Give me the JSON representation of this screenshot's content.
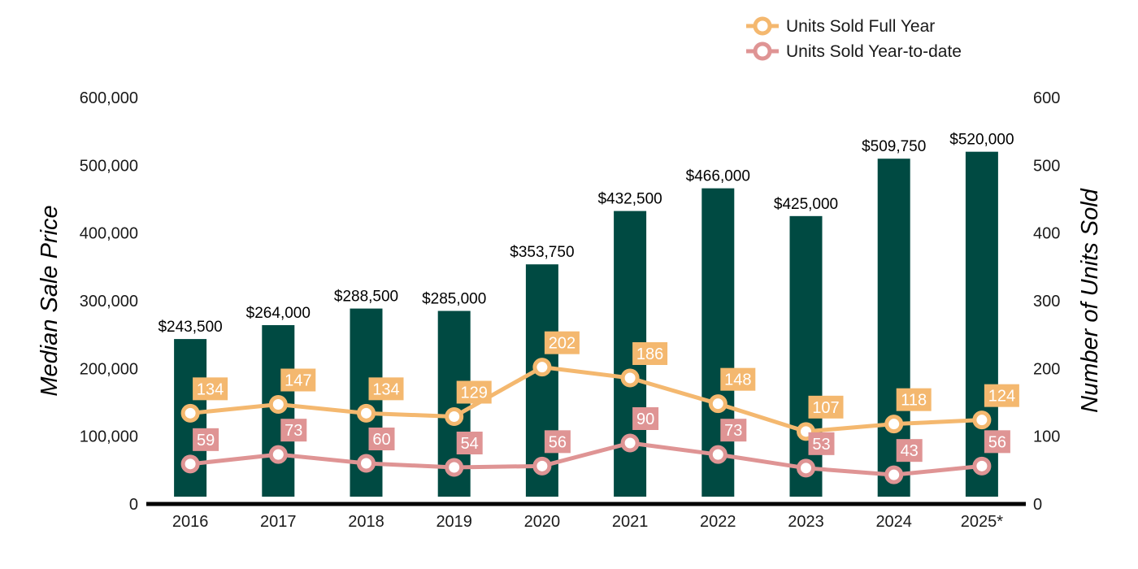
{
  "chart_data": {
    "type": "bar",
    "categories": [
      "2016",
      "2017",
      "2018",
      "2019",
      "2020",
      "2021",
      "2022",
      "2023",
      "2024",
      "2025*"
    ],
    "ylabel": "Median Sale Price",
    "y2label": "Number of Units Sold",
    "ylim": [
      0,
      600000
    ],
    "y2lim": [
      0,
      600
    ],
    "yticks": [
      "0",
      "100,000",
      "200,000",
      "300,000",
      "400,000",
      "500,000",
      "600,000"
    ],
    "y2ticks": [
      "0",
      "100",
      "200",
      "300",
      "400",
      "500",
      "600"
    ],
    "bars": {
      "values": [
        243500,
        264000,
        288500,
        285000,
        353750,
        432500,
        466000,
        425000,
        509750,
        520000
      ],
      "labels": [
        "$243,500",
        "$264,000",
        "$288,500",
        "$285,000",
        "$353,750",
        "$432,500",
        "$466,000",
        "$425,000",
        "$509,750",
        "$520,000"
      ],
      "color": "#004a42"
    },
    "series": [
      {
        "name": "Units Sold Full Year",
        "type": "line",
        "axis": "right",
        "values": [
          134,
          147,
          134,
          129,
          202,
          186,
          148,
          107,
          118,
          124
        ],
        "color": "#f4b86f"
      },
      {
        "name": "Units Sold Year-to-date",
        "type": "line",
        "axis": "right",
        "values": [
          59,
          73,
          60,
          54,
          56,
          90,
          73,
          53,
          43,
          56
        ],
        "color": "#df9494"
      }
    ],
    "legend": "top-right",
    "grid": false
  }
}
